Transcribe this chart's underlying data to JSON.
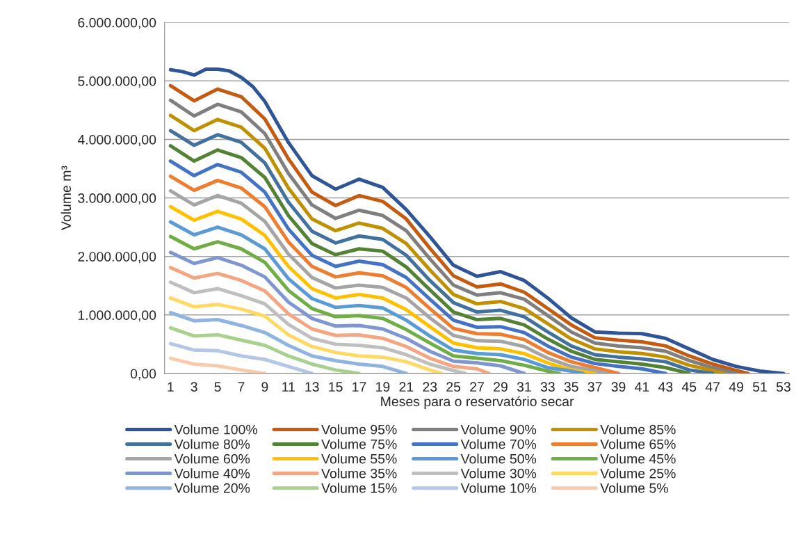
{
  "chart_data": {
    "type": "line",
    "xlabel": "Meses para o reservatório secar",
    "ylabel": "Volume m³",
    "xlim": [
      0.5,
      53.5
    ],
    "xticks": [
      1,
      3,
      5,
      7,
      9,
      11,
      13,
      15,
      17,
      19,
      21,
      23,
      25,
      27,
      29,
      31,
      33,
      35,
      37,
      39,
      41,
      43,
      45,
      47,
      49,
      51,
      53
    ],
    "ylim": [
      0,
      6000000
    ],
    "yticks": [
      {
        "value": 0,
        "label": "0,00"
      },
      {
        "value": 1000000,
        "label": "1.000.000,00"
      },
      {
        "value": 2000000,
        "label": "2.000.000,00"
      },
      {
        "value": 3000000,
        "label": "3.000.000,00"
      },
      {
        "value": 4000000,
        "label": "4.000.000,00"
      },
      {
        "value": 5000000,
        "label": "5.000.000,00"
      },
      {
        "value": 6000000,
        "label": "6.000.000,00"
      }
    ],
    "grid": "y",
    "legend": "bottom",
    "marker": "none",
    "line_style": "solid",
    "series": [
      {
        "name": "Volume 100%",
        "color": "#2f5597",
        "x": [
          1,
          2,
          3,
          4,
          5,
          6,
          7,
          8,
          9,
          11,
          13,
          15,
          17,
          19,
          21,
          23,
          25,
          27,
          29,
          31,
          33,
          35,
          37,
          39,
          41,
          43,
          45,
          47,
          49,
          51,
          53
        ],
        "values": [
          5190000,
          5160000,
          5100000,
          5200000,
          5200000,
          5170000,
          5060000,
          4900000,
          4650000,
          3950000,
          3380000,
          3150000,
          3320000,
          3180000,
          2800000,
          2340000,
          1850000,
          1660000,
          1740000,
          1590000,
          1290000,
          950000,
          710000,
          690000,
          680000,
          600000,
          420000,
          240000,
          120000,
          40000,
          0
        ]
      },
      {
        "name": "Volume 95%",
        "color": "#c55a11",
        "x": [
          1,
          3,
          5,
          7,
          9,
          11,
          13,
          15,
          17,
          19,
          21,
          23,
          25,
          27,
          29,
          31,
          33,
          35,
          37,
          39,
          41,
          43,
          45,
          47,
          49,
          50
        ],
        "values": [
          4920000,
          4660000,
          4860000,
          4730000,
          4350000,
          3670000,
          3100000,
          2870000,
          3040000,
          2940000,
          2640000,
          2140000,
          1670000,
          1480000,
          1530000,
          1390000,
          1110000,
          830000,
          610000,
          570000,
          540000,
          470000,
          300000,
          160000,
          50000,
          0
        ]
      },
      {
        "name": "Volume 90%",
        "color": "#7f7f7f",
        "x": [
          1,
          3,
          5,
          7,
          9,
          11,
          13,
          15,
          17,
          19,
          21,
          23,
          25,
          27,
          29,
          31,
          33,
          35,
          37,
          39,
          41,
          43,
          45,
          47,
          49
        ],
        "values": [
          4670000,
          4400000,
          4600000,
          4470000,
          4100000,
          3420000,
          2880000,
          2650000,
          2790000,
          2700000,
          2440000,
          1960000,
          1510000,
          1340000,
          1380000,
          1270000,
          990000,
          710000,
          520000,
          470000,
          440000,
          380000,
          220000,
          100000,
          0
        ]
      },
      {
        "name": "Volume 85%",
        "color": "#bf9000",
        "x": [
          1,
          3,
          5,
          7,
          9,
          11,
          13,
          15,
          17,
          19,
          21,
          23,
          25,
          27,
          29,
          31,
          33,
          35,
          37,
          39,
          41,
          43,
          45,
          47,
          48
        ],
        "values": [
          4410000,
          4150000,
          4340000,
          4210000,
          3850000,
          3170000,
          2640000,
          2440000,
          2570000,
          2480000,
          2220000,
          1770000,
          1350000,
          1190000,
          1230000,
          1110000,
          850000,
          590000,
          420000,
          370000,
          340000,
          280000,
          140000,
          50000,
          0
        ]
      },
      {
        "name": "Volume 80%",
        "color": "#41719c",
        "x": [
          1,
          3,
          5,
          7,
          9,
          11,
          13,
          15,
          17,
          19,
          21,
          23,
          25,
          27,
          29,
          31,
          33,
          35,
          37,
          39,
          41,
          43,
          45,
          47
        ],
        "values": [
          4150000,
          3900000,
          4080000,
          3950000,
          3600000,
          2930000,
          2430000,
          2230000,
          2350000,
          2290000,
          2020000,
          1590000,
          1210000,
          1050000,
          1080000,
          970000,
          710000,
          470000,
          320000,
          280000,
          250000,
          200000,
          60000,
          0
        ]
      },
      {
        "name": "Volume 75%",
        "color": "#548235",
        "x": [
          1,
          3,
          5,
          7,
          9,
          11,
          13,
          15,
          17,
          19,
          21,
          23,
          25,
          27,
          29,
          31,
          33,
          35,
          37,
          39,
          41,
          43,
          45
        ],
        "values": [
          3890000,
          3630000,
          3820000,
          3690000,
          3350000,
          2700000,
          2220000,
          2030000,
          2130000,
          2090000,
          1820000,
          1430000,
          1050000,
          920000,
          940000,
          830000,
          590000,
          380000,
          240000,
          200000,
          160000,
          100000,
          0
        ]
      },
      {
        "name": "Volume 70%",
        "color": "#4472c4",
        "x": [
          1,
          3,
          5,
          7,
          9,
          11,
          13,
          15,
          17,
          19,
          21,
          23,
          25,
          27,
          29,
          31,
          33,
          35,
          37,
          39,
          41,
          43
        ],
        "values": [
          3630000,
          3380000,
          3570000,
          3440000,
          3100000,
          2470000,
          2020000,
          1830000,
          1920000,
          1860000,
          1640000,
          1270000,
          910000,
          790000,
          800000,
          700000,
          470000,
          280000,
          170000,
          120000,
          80000,
          0
        ]
      },
      {
        "name": "Volume 65%",
        "color": "#ed7d31",
        "x": [
          1,
          3,
          5,
          7,
          9,
          11,
          13,
          15,
          17,
          19,
          21,
          23,
          25,
          27,
          29,
          31,
          33,
          35,
          37,
          39
        ],
        "values": [
          3370000,
          3130000,
          3300000,
          3170000,
          2850000,
          2250000,
          1830000,
          1650000,
          1720000,
          1670000,
          1470000,
          1110000,
          770000,
          680000,
          670000,
          580000,
          360000,
          200000,
          100000,
          0
        ]
      },
      {
        "name": "Volume 60%",
        "color": "#a5a5a5",
        "x": [
          1,
          3,
          5,
          7,
          9,
          11,
          13,
          15,
          17,
          19,
          21,
          23,
          25,
          27,
          29,
          31,
          33,
          35,
          37,
          38
        ],
        "values": [
          3120000,
          2880000,
          3040000,
          2910000,
          2600000,
          2040000,
          1640000,
          1460000,
          1510000,
          1470000,
          1290000,
          950000,
          650000,
          560000,
          550000,
          460000,
          260000,
          120000,
          50000,
          0
        ]
      },
      {
        "name": "Volume 55%",
        "color": "#ffc000",
        "x": [
          1,
          3,
          5,
          7,
          9,
          11,
          13,
          15,
          17,
          19,
          21,
          23,
          25,
          27,
          29,
          31,
          33,
          35,
          37
        ],
        "values": [
          2850000,
          2620000,
          2770000,
          2640000,
          2360000,
          1830000,
          1450000,
          1290000,
          1350000,
          1290000,
          1090000,
          800000,
          520000,
          440000,
          420000,
          340000,
          180000,
          60000,
          0
        ]
      },
      {
        "name": "Volume 50%",
        "color": "#5b9bd5",
        "x": [
          1,
          3,
          5,
          7,
          9,
          11,
          13,
          15,
          17,
          19,
          21,
          23,
          25,
          27,
          29,
          31,
          33,
          35,
          36
        ],
        "values": [
          2590000,
          2370000,
          2500000,
          2370000,
          2130000,
          1620000,
          1280000,
          1130000,
          1160000,
          1120000,
          910000,
          640000,
          400000,
          340000,
          320000,
          240000,
          100000,
          40000,
          0
        ]
      },
      {
        "name": "Volume 45%",
        "color": "#70ad47",
        "x": [
          1,
          3,
          5,
          7,
          9,
          11,
          13,
          15,
          17,
          19,
          21,
          23,
          25,
          27,
          29,
          31,
          33,
          34
        ],
        "values": [
          2340000,
          2130000,
          2250000,
          2130000,
          1900000,
          1420000,
          1110000,
          970000,
          990000,
          940000,
          750000,
          520000,
          300000,
          260000,
          220000,
          140000,
          40000,
          0
        ]
      },
      {
        "name": "Volume 40%",
        "color": "#7f96d0",
        "x": [
          1,
          3,
          5,
          7,
          9,
          11,
          13,
          15,
          17,
          19,
          21,
          23,
          25,
          27,
          29,
          31
        ],
        "values": [
          2070000,
          1880000,
          1980000,
          1850000,
          1650000,
          1220000,
          940000,
          810000,
          820000,
          760000,
          600000,
          380000,
          210000,
          180000,
          130000,
          0
        ]
      },
      {
        "name": "Volume 35%",
        "color": "#f4a582",
        "x": [
          1,
          3,
          5,
          7,
          9,
          11,
          13,
          15,
          17,
          19,
          21,
          23,
          25,
          27,
          28
        ],
        "values": [
          1810000,
          1630000,
          1710000,
          1590000,
          1410000,
          1020000,
          760000,
          650000,
          660000,
          600000,
          460000,
          260000,
          120000,
          80000,
          0
        ]
      },
      {
        "name": "Volume 30%",
        "color": "#bfbfbf",
        "x": [
          1,
          3,
          5,
          7,
          9,
          11,
          13,
          15,
          17,
          19,
          21,
          23,
          25,
          26
        ],
        "values": [
          1560000,
          1380000,
          1450000,
          1330000,
          1190000,
          840000,
          600000,
          500000,
          480000,
          440000,
          320000,
          160000,
          50000,
          0
        ]
      },
      {
        "name": "Volume 25%",
        "color": "#ffd966",
        "x": [
          1,
          3,
          5,
          7,
          9,
          11,
          13,
          15,
          17,
          19,
          21,
          23,
          24
        ],
        "values": [
          1290000,
          1140000,
          1180000,
          1100000,
          980000,
          660000,
          460000,
          360000,
          300000,
          280000,
          200000,
          60000,
          0
        ]
      },
      {
        "name": "Volume 20%",
        "color": "#8fb4e0",
        "x": [
          1,
          3,
          5,
          7,
          9,
          11,
          13,
          15,
          17,
          19,
          21
        ],
        "values": [
          1040000,
          900000,
          920000,
          820000,
          700000,
          480000,
          300000,
          220000,
          160000,
          120000,
          0
        ]
      },
      {
        "name": "Volume 15%",
        "color": "#a9d18e",
        "x": [
          1,
          3,
          5,
          7,
          9,
          11,
          13,
          15,
          17
        ],
        "values": [
          780000,
          640000,
          660000,
          570000,
          480000,
          300000,
          160000,
          60000,
          0
        ]
      },
      {
        "name": "Volume 10%",
        "color": "#b4c7e7",
        "x": [
          1,
          3,
          5,
          7,
          9,
          11,
          13
        ],
        "values": [
          510000,
          400000,
          390000,
          300000,
          240000,
          120000,
          0
        ]
      },
      {
        "name": "Volume 5%",
        "color": "#f8cbad",
        "x": [
          1,
          3,
          5,
          7,
          9
        ],
        "values": [
          260000,
          160000,
          130000,
          60000,
          0
        ]
      }
    ]
  }
}
